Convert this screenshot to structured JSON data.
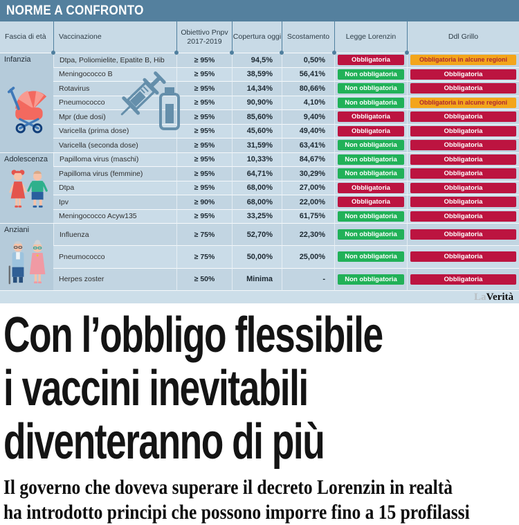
{
  "infographic": {
    "title": "NORME A CONFRONTO",
    "brand": {
      "la": "La",
      "verita": "Verità"
    },
    "columns": [
      "Fascia di età",
      "Vaccinazione",
      "Obiettivo Pnpv 2017-2019",
      "Copertura oggi",
      "Scostamento",
      "Legge Lorenzin",
      "Ddl Grillo"
    ],
    "status_colors": {
      "obbligatoria": "#bc1440",
      "non_obbligatoria": "#21b158",
      "obbligatoria_alcune_regioni": "#f3a51b"
    },
    "groups": [
      {
        "label": "Infanzia",
        "icon": "pram-icon",
        "rows": [
          {
            "vaccine": "Dtpa, Poliomielite, Epatite B, Hib",
            "target": "≥ 95%",
            "coverage": "94,5%",
            "gap": "0,50%",
            "lorenzin": {
              "label": "Obbligatoria",
              "type": "obbligatoria"
            },
            "grillo": {
              "label": "Obbligatoria in alcune regioni",
              "type": "regioni"
            }
          },
          {
            "vaccine": "Meningococco B",
            "target": "≥ 95%",
            "coverage": "38,59%",
            "gap": "56,41%",
            "lorenzin": {
              "label": "Non obbligatoria",
              "type": "non-obbligatoria"
            },
            "grillo": {
              "label": "Obbligatoria",
              "type": "obbligatoria"
            }
          },
          {
            "vaccine": "Rotavirus",
            "target": "≥ 95%",
            "coverage": "14,34%",
            "gap": "80,66%",
            "lorenzin": {
              "label": "Non obbligatoria",
              "type": "non-obbligatoria"
            },
            "grillo": {
              "label": "Obbligatoria",
              "type": "obbligatoria"
            }
          },
          {
            "vaccine": "Pneumococco",
            "target": "≥ 95%",
            "coverage": "90,90%",
            "gap": "4,10%",
            "lorenzin": {
              "label": "Non obbligatoria",
              "type": "non-obbligatoria"
            },
            "grillo": {
              "label": "Obbligatoria in alcune regioni",
              "type": "regioni"
            }
          },
          {
            "vaccine": "Mpr (due dosi)",
            "target": "≥ 95%",
            "coverage": "85,60%",
            "gap": "9,40%",
            "lorenzin": {
              "label": "Obbligatoria",
              "type": "obbligatoria"
            },
            "grillo": {
              "label": "Obbligatoria",
              "type": "obbligatoria"
            }
          },
          {
            "vaccine": "Varicella (prima dose)",
            "target": "≥ 95%",
            "coverage": "45,60%",
            "gap": "49,40%",
            "lorenzin": {
              "label": "Obbligatoria",
              "type": "obbligatoria"
            },
            "grillo": {
              "label": "Obbligatoria",
              "type": "obbligatoria"
            }
          },
          {
            "vaccine": "Varicella (seconda dose)",
            "target": "≥ 95%",
            "coverage": "31,59%",
            "gap": "63,41%",
            "lorenzin": {
              "label": "Non obbligatoria",
              "type": "non-obbligatoria"
            },
            "grillo": {
              "label": "Obbligatoria",
              "type": "obbligatoria"
            }
          }
        ]
      },
      {
        "label": "Adolescenza",
        "icon": "teens-icon",
        "rows": [
          {
            "vaccine": "Papilloma virus (maschi)",
            "target": "≥ 95%",
            "coverage": "10,33%",
            "gap": "84,67%",
            "lorenzin": {
              "label": "Non obbligatoria",
              "type": "non-obbligatoria"
            },
            "grillo": {
              "label": "Obbligatoria",
              "type": "obbligatoria"
            }
          },
          {
            "vaccine": "Papilloma virus (femmine)",
            "target": "≥ 95%",
            "coverage": "64,71%",
            "gap": "30,29%",
            "lorenzin": {
              "label": "Non obbligatoria",
              "type": "non-obbligatoria"
            },
            "grillo": {
              "label": "Obbligatoria",
              "type": "obbligatoria"
            }
          },
          {
            "vaccine": "Dtpa",
            "target": "≥ 95%",
            "coverage": "68,00%",
            "gap": "27,00%",
            "lorenzin": {
              "label": "Obbligatoria",
              "type": "obbligatoria"
            },
            "grillo": {
              "label": "Obbligatoria",
              "type": "obbligatoria"
            }
          },
          {
            "vaccine": "Ipv",
            "target": "≥ 90%",
            "coverage": "68,00%",
            "gap": "22,00%",
            "lorenzin": {
              "label": "Obbligatoria",
              "type": "obbligatoria"
            },
            "grillo": {
              "label": "Obbligatoria",
              "type": "obbligatoria"
            }
          },
          {
            "vaccine": "Meningococco Acyw135",
            "target": "≥ 95%",
            "coverage": "33,25%",
            "gap": "61,75%",
            "lorenzin": {
              "label": "Non obbligatoria",
              "type": "non-obbligatoria"
            },
            "grillo": {
              "label": "Obbligatoria",
              "type": "obbligatoria"
            }
          }
        ]
      },
      {
        "label": "Anziani",
        "icon": "elderly-icon",
        "rows": [
          {
            "vaccine": "Influenza",
            "target": "≥ 75%",
            "coverage": "52,70%",
            "gap": "22,30%",
            "lorenzin": {
              "label": "Non obbligatoria",
              "type": "non-obbligatoria"
            },
            "grillo": {
              "label": "Obbligatoria",
              "type": "obbligatoria"
            }
          },
          {
            "vaccine": "Pneumococco",
            "target": "≥ 75%",
            "coverage": "50,00%",
            "gap": "25,00%",
            "lorenzin": {
              "label": "Non obbligatoria",
              "type": "non-obbligatoria"
            },
            "grillo": {
              "label": "Obbligatoria",
              "type": "obbligatoria"
            }
          },
          {
            "vaccine": "Herpes zoster",
            "target": "≥ 50%",
            "coverage": "Minima",
            "gap": "-",
            "lorenzin": {
              "label": "Non obbligatoria",
              "type": "non-obbligatoria"
            },
            "grillo": {
              "label": "Obbligatoria",
              "type": "obbligatoria"
            }
          }
        ]
      }
    ]
  },
  "article": {
    "headline_lines": [
      "Con l’obbligo flessibile",
      "i vaccini inevitabili",
      "diventeranno di più"
    ],
    "subhead_lines": [
      "Il governo che doveva superare il decreto Lorenzin in realtà",
      "ha introdotto principi che possono imporre fino a 15 profilassi"
    ]
  }
}
